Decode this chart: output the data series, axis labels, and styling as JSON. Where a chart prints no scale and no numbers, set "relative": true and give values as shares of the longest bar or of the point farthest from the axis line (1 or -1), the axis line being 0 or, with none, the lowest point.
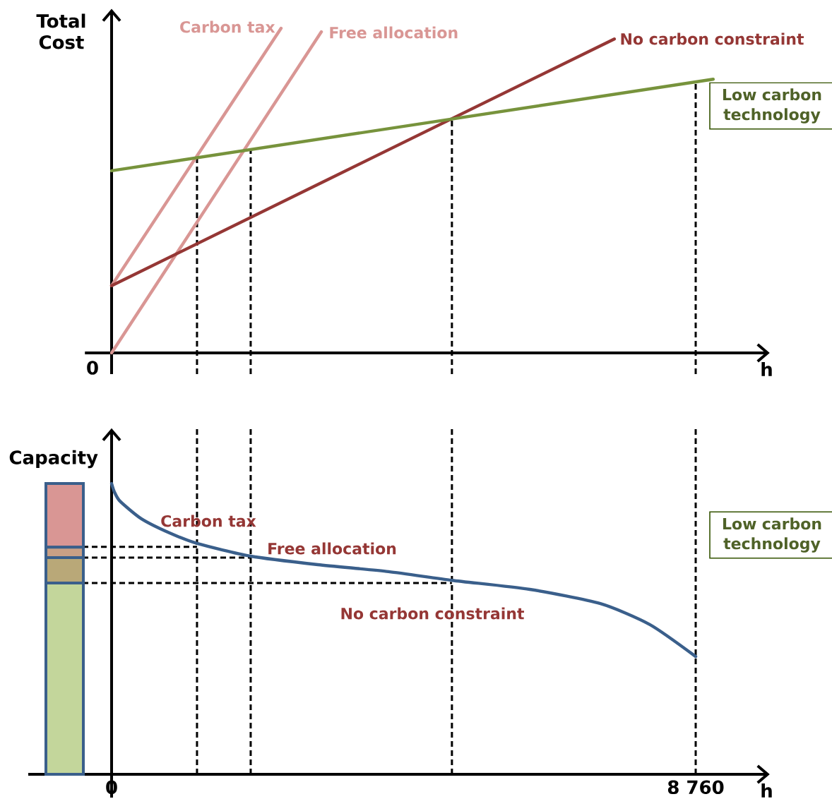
{
  "chart_data": [
    {
      "type": "line",
      "relative": true,
      "ylabel": "Total Cost",
      "xlabel": "h",
      "xlim": [
        -400,
        9870
      ],
      "xticks": [
        0,
        8760
      ],
      "tick_labels": false,
      "annotations": [
        "0"
      ],
      "series": [
        {
          "name": "Carbon tax",
          "color": "#d99694",
          "x": [
            0,
            2542
          ],
          "values": [
            0.207,
            1.0
          ]
        },
        {
          "name": "Free allocation",
          "color": "#d99694",
          "x": [
            0,
            3146
          ],
          "values": [
            0,
            0.989
          ]
        },
        {
          "name": "No carbon constraint",
          "color": "#953735",
          "x": [
            0,
            7540
          ],
          "values": [
            0.207,
            0.967
          ]
        },
        {
          "name": "Low carbon technology",
          "color": "#77933c",
          "x": [
            0,
            9023
          ],
          "values": [
            0.561,
            0.843
          ]
        }
      ],
      "ref_lines": [
        {
          "axis": "x",
          "value": 1281,
          "color": "#000000",
          "line_style": "dashed"
        },
        {
          "axis": "x",
          "value": 2086,
          "color": "#000000",
          "line_style": "dashed"
        },
        {
          "axis": "x",
          "value": 5104,
          "color": "#000000",
          "line_style": "dashed"
        },
        {
          "axis": "x",
          "value": 8760,
          "color": "#000000",
          "line_style": "dashed"
        }
      ]
    },
    {
      "type": "line",
      "relative": true,
      "ylabel": "Capacity",
      "xlabel": "h",
      "xlim": [
        -1250,
        9870
      ],
      "xticks": [
        0,
        {
          "value": 8760,
          "label": "8 760"
        }
      ],
      "series": [
        {
          "color": "#3a5f8b",
          "x": [
            0,
            42,
            127,
            445,
            869,
            1282,
            2087,
            3093,
            4153,
            5106,
            6271,
            7331,
            8072,
            8760
          ],
          "values": [
            1.0,
            0.971,
            0.939,
            0.879,
            0.83,
            0.794,
            0.75,
            0.721,
            0.697,
            0.667,
            0.636,
            0.587,
            0.515,
            0.405
          ]
        }
      ],
      "ref_lines": [
        {
          "axis": "x",
          "value": 1281,
          "color": "#000000",
          "line_style": "dashed"
        },
        {
          "axis": "x",
          "value": 2086,
          "color": "#000000",
          "line_style": "dashed"
        },
        {
          "axis": "x",
          "value": 5104,
          "color": "#000000",
          "line_style": "dashed"
        },
        {
          "axis": "x",
          "value": 8760,
          "color": "#000000",
          "line_style": "dashed"
        },
        {
          "axis": "y",
          "value": 0.782,
          "color": "#000000",
          "line_style": "dashed"
        },
        {
          "axis": "y",
          "value": 0.745,
          "color": "#000000",
          "line_style": "dashed"
        },
        {
          "axis": "y",
          "value": 0.658,
          "color": "#000000",
          "line_style": "dashed"
        }
      ],
      "annotations": [
        "Carbon tax",
        "Free allocation",
        "No carbon constraint",
        "Low carbon technology"
      ]
    },
    {
      "type": "bar",
      "relative": true,
      "stacked": true,
      "categories": [
        null
      ],
      "series": [
        {
          "color": "#c3d69b",
          "values": [
            0.658
          ]
        },
        {
          "color": "#b9a878",
          "values": [
            0.087
          ]
        },
        {
          "color": "#c9a085",
          "values": [
            0.036
          ]
        },
        {
          "color": "#d99694",
          "values": [
            0.219
          ]
        }
      ]
    }
  ]
}
